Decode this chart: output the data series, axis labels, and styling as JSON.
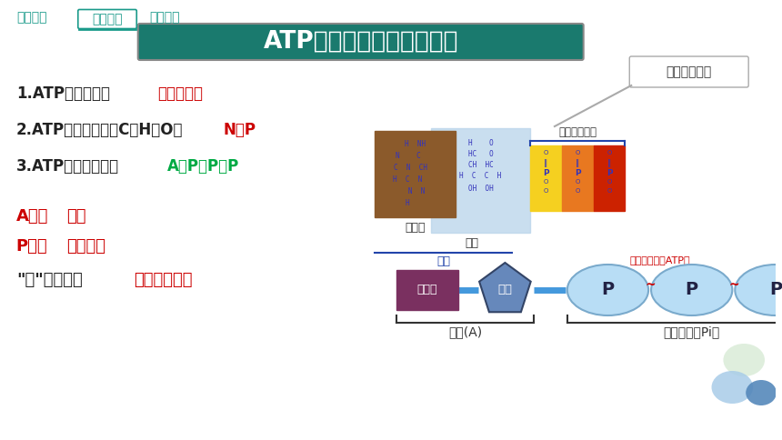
{
  "bg_color": "#ffffff",
  "title_text": "ATP是一种高能磷酸化合物",
  "title_bg": "#1a7a6e",
  "title_fg": "#ffffff",
  "nav_items": [
    "学习目标",
    "新知学习",
    "课堂总结"
  ],
  "nav_color": "#1a9a8a",
  "line1_prefix": "1.ATP中文名称：",
  "line1_red": "腺苷三磷酸",
  "line2_prefix": "2.ATP的组成元素：C、H、O、",
  "line2_red": "N、P",
  "line3_prefix": "3.ATP的结构简式：",
  "line3_colored": "A－P～P～P",
  "block_A_text": "A代表",
  "block_A_red": "腺苷",
  "block_P_text": "P代表",
  "block_P_red": "磷酸基团",
  "block_tilde_prefix": "\"～\"代表一种",
  "block_tilde_red": "特殊的化学键",
  "molecule_brown": "#8B5A2B",
  "molecule_blue_light": "#b8d4ea",
  "molecule_yellow": "#f5d020",
  "molecule_orange": "#e87820",
  "molecule_red": "#cc2200",
  "question_box_text": "组成元素有？",
  "label_adenine": "腺嘌呤",
  "label_ribose": "核糖",
  "label_three_p": "三个磷酸基团",
  "label_adenosine": "腺苷",
  "label_atp": "腺苷三磷酸（ATP）",
  "bottom_purine_text": "腺嘌呤",
  "bottom_ribose_text": "核糖",
  "bottom_p_text": "P",
  "bottom_adenosine_text": "腺苷(A)",
  "bottom_pi_text": "磷酸基团（Pi）",
  "tilde_color": "#cc0000",
  "text_color": "#222222",
  "red_color": "#cc0000",
  "blue_color": "#1a7aaa"
}
